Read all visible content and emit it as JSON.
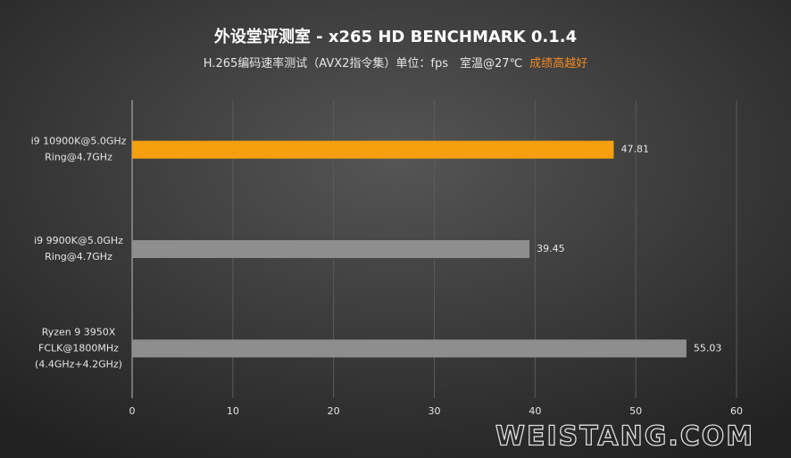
{
  "chart_data": {
    "type": "hbar",
    "title": "外设堂评测室 - x265 HD BENCHMARK 0.1.4",
    "subtitle": "H.265编码速率测试（AVX2指令集）单位：fps　室温@27℃",
    "subtitle_note": "成绩高越好",
    "categories": [
      [
        "i9 10900K@5.0GHz",
        "Ring@4.7GHz"
      ],
      [
        "i9 9900K@5.0GHz",
        "Ring@4.7GHz"
      ],
      [
        "Ryzen 9 3950X",
        "FCLK@1800MHz",
        "(4.4GHz+4.2GHz)"
      ]
    ],
    "values": [
      47.81,
      39.45,
      55.03
    ],
    "colors": [
      "#f7a00f",
      "#8e8e8e",
      "#8e8e8e"
    ],
    "xlim": [
      0,
      60
    ],
    "xticks": [
      0,
      10,
      20,
      30,
      40,
      50,
      60
    ],
    "grid": true,
    "watermark": "WEISTANG.COM"
  }
}
